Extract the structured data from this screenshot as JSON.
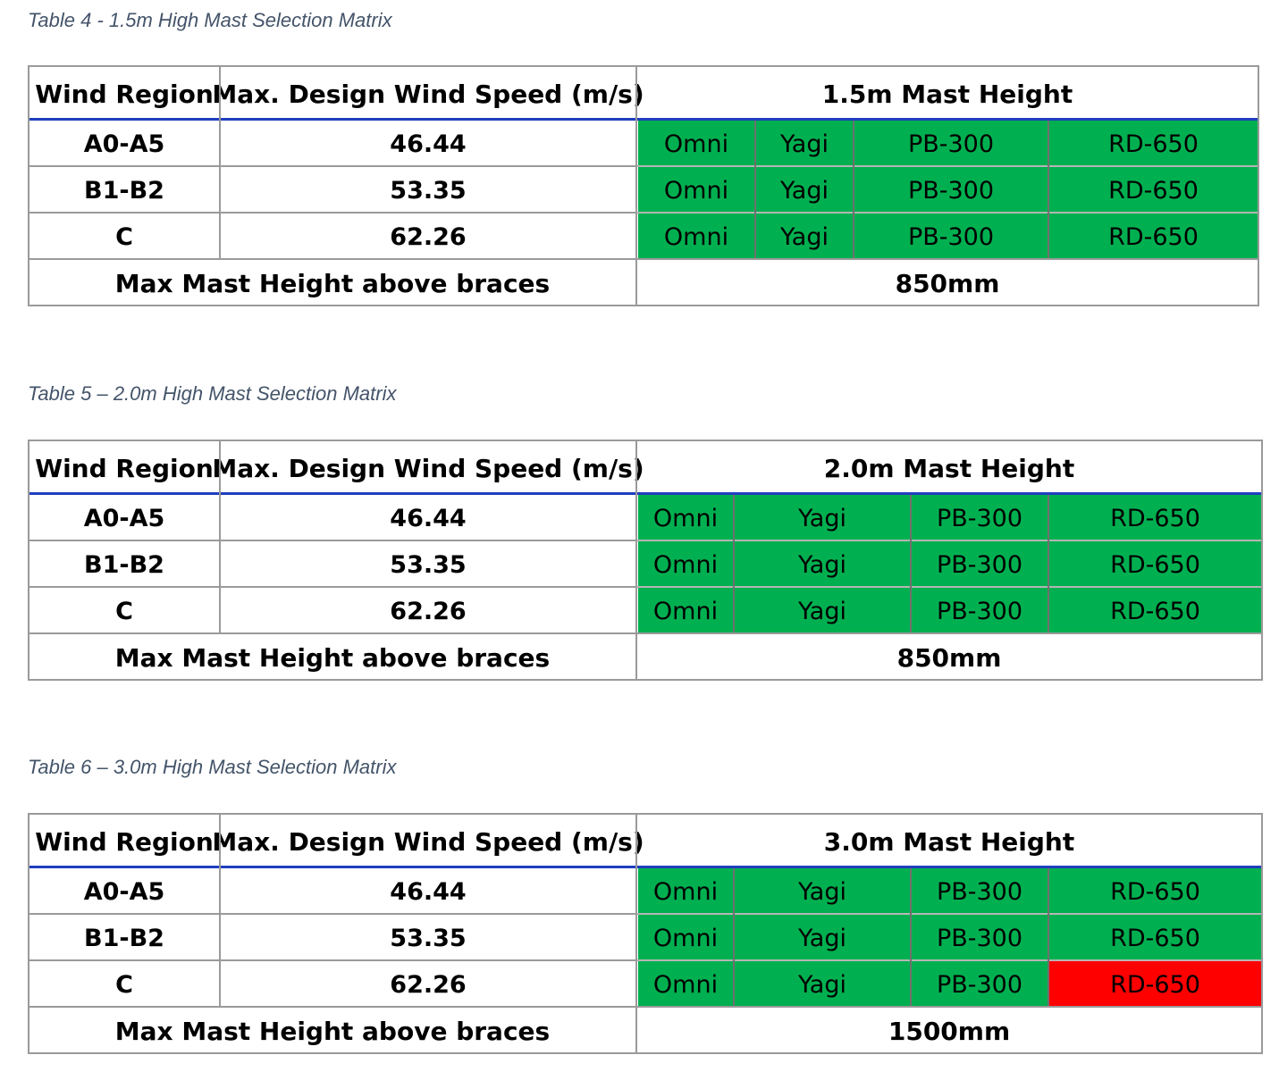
{
  "tables": [
    {
      "caption": "Table 4 - 1.5m High Mast Selection Matrix",
      "headers": {
        "region": "Wind Region",
        "speed": "Max. Design Wind Speed (m/s)",
        "mast": "1.5m Mast Height"
      },
      "rows": [
        {
          "region": "A0-A5",
          "speed": "46.44",
          "antennas": [
            {
              "label": "Omni",
              "status": "green"
            },
            {
              "label": "Yagi",
              "status": "green"
            },
            {
              "label": "PB-300",
              "status": "green"
            },
            {
              "label": "RD-650",
              "status": "green"
            }
          ]
        },
        {
          "region": "B1-B2",
          "speed": "53.35",
          "antennas": [
            {
              "label": "Omni",
              "status": "green"
            },
            {
              "label": "Yagi",
              "status": "green"
            },
            {
              "label": "PB-300",
              "status": "green"
            },
            {
              "label": "RD-650",
              "status": "green"
            }
          ]
        },
        {
          "region": "C",
          "speed": "62.26",
          "antennas": [
            {
              "label": "Omni",
              "status": "green"
            },
            {
              "label": "Yagi",
              "status": "green"
            },
            {
              "label": "PB-300",
              "status": "green"
            },
            {
              "label": "RD-650",
              "status": "green"
            }
          ]
        }
      ],
      "footer": {
        "label": "Max Mast Height above braces",
        "value": "850mm"
      }
    },
    {
      "caption": "Table 5 – 2.0m High Mast Selection Matrix",
      "headers": {
        "region": "Wind Region",
        "speed": "Max. Design Wind Speed (m/s)",
        "mast": "2.0m Mast Height"
      },
      "rows": [
        {
          "region": "A0-A5",
          "speed": "46.44",
          "antennas": [
            {
              "label": "Omni",
              "status": "green"
            },
            {
              "label": "Yagi",
              "status": "green"
            },
            {
              "label": "PB-300",
              "status": "green"
            },
            {
              "label": "RD-650",
              "status": "green"
            }
          ]
        },
        {
          "region": "B1-B2",
          "speed": "53.35",
          "antennas": [
            {
              "label": "Omni",
              "status": "green"
            },
            {
              "label": "Yagi",
              "status": "green"
            },
            {
              "label": "PB-300",
              "status": "green"
            },
            {
              "label": "RD-650",
              "status": "green"
            }
          ]
        },
        {
          "region": "C",
          "speed": "62.26",
          "antennas": [
            {
              "label": "Omni",
              "status": "green"
            },
            {
              "label": "Yagi",
              "status": "green"
            },
            {
              "label": "PB-300",
              "status": "green"
            },
            {
              "label": "RD-650",
              "status": "green"
            }
          ]
        }
      ],
      "footer": {
        "label": "Max Mast Height above braces",
        "value": "850mm"
      }
    },
    {
      "caption": "Table 6 – 3.0m High Mast Selection Matrix",
      "headers": {
        "region": "Wind Region",
        "speed": "Max. Design Wind Speed (m/s)",
        "mast": "3.0m Mast Height"
      },
      "rows": [
        {
          "region": "A0-A5",
          "speed": "46.44",
          "antennas": [
            {
              "label": "Omni",
              "status": "green"
            },
            {
              "label": "Yagi",
              "status": "green"
            },
            {
              "label": "PB-300",
              "status": "green"
            },
            {
              "label": "RD-650",
              "status": "green"
            }
          ]
        },
        {
          "region": "B1-B2",
          "speed": "53.35",
          "antennas": [
            {
              "label": "Omni",
              "status": "green"
            },
            {
              "label": "Yagi",
              "status": "green"
            },
            {
              "label": "PB-300",
              "status": "green"
            },
            {
              "label": "RD-650",
              "status": "green"
            }
          ]
        },
        {
          "region": "C",
          "speed": "62.26",
          "antennas": [
            {
              "label": "Omni",
              "status": "green"
            },
            {
              "label": "Yagi",
              "status": "green"
            },
            {
              "label": "PB-300",
              "status": "green"
            },
            {
              "label": "RD-650",
              "status": "red"
            }
          ]
        }
      ],
      "footer": {
        "label": "Max Mast Height above braces",
        "value": "1500mm"
      }
    }
  ],
  "colors": {
    "green": "#00b050",
    "red": "#ff0000",
    "header_rule": "#1f3fbf",
    "caption": "#44546a"
  }
}
